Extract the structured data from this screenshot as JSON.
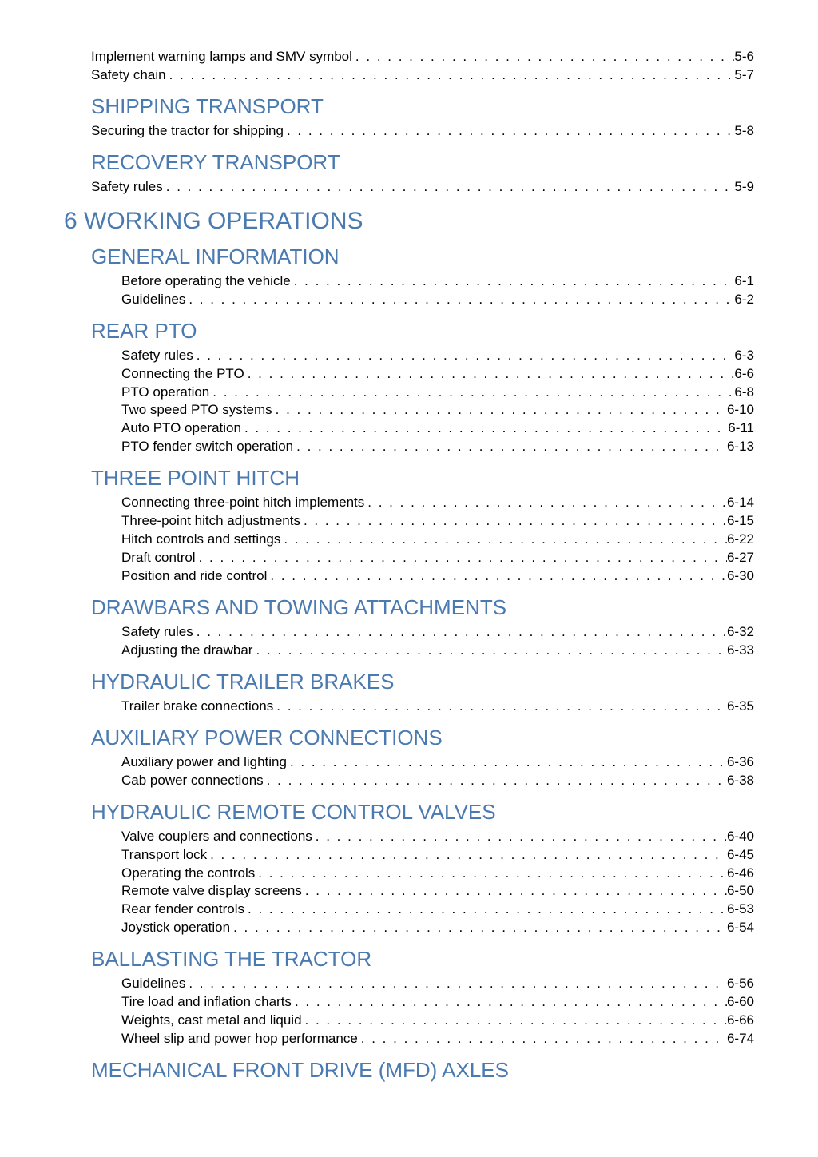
{
  "dot_fill": ". . . . . . . . . . . . . . . . . . . . . . . . . . . . . . . . . . . . . . . . . . . . . . . . . . . . . . . . . . . . . . . . . . . . . . . . . . . . . . . . . . . . . . . . . . . . . . . . . . . . . . . . . . . . . . . . . . . . . . . .",
  "colors": {
    "heading": "#4a7ab0",
    "body_text": "#000000",
    "background": "#ffffff",
    "rule": "#000000"
  },
  "typography": {
    "chapter_fontsize": 30,
    "section_fontsize": 26,
    "entry_fontsize": 17,
    "font_family": "Arial"
  },
  "toc": [
    {
      "type": "entry-l1",
      "label": "Implement warning lamps and SMV symbol",
      "page": "5-6"
    },
    {
      "type": "entry-l1",
      "label": "Safety chain",
      "page": "5-7"
    },
    {
      "type": "section",
      "label": "SHIPPING TRANSPORT"
    },
    {
      "type": "entry-l1",
      "label": "Securing the tractor for shipping",
      "page": "5-8"
    },
    {
      "type": "section",
      "label": "RECOVERY TRANSPORT"
    },
    {
      "type": "entry-l1",
      "label": "Safety rules",
      "page": "5-9"
    },
    {
      "type": "chapter",
      "label": "6 WORKING OPERATIONS"
    },
    {
      "type": "section",
      "label": "GENERAL INFORMATION"
    },
    {
      "type": "entry-l2",
      "label": "Before operating the vehicle",
      "page": "6-1"
    },
    {
      "type": "entry-l2",
      "label": "Guidelines",
      "page": "6-2"
    },
    {
      "type": "section",
      "label": "REAR PTO"
    },
    {
      "type": "entry-l2",
      "label": "Safety rules",
      "page": "6-3"
    },
    {
      "type": "entry-l2",
      "label": "Connecting the PTO",
      "page": "6-6"
    },
    {
      "type": "entry-l2",
      "label": "PTO operation",
      "page": "6-8"
    },
    {
      "type": "entry-l2",
      "label": "Two speed PTO systems",
      "page": "6-10"
    },
    {
      "type": "entry-l2",
      "label": "Auto PTO operation",
      "page": "6-11"
    },
    {
      "type": "entry-l2",
      "label": "PTO fender switch operation",
      "page": "6-13"
    },
    {
      "type": "section",
      "label": "THREE POINT HITCH"
    },
    {
      "type": "entry-l2",
      "label": "Connecting three-point hitch implements",
      "page": "6-14"
    },
    {
      "type": "entry-l2",
      "label": "Three-point hitch adjustments",
      "page": "6-15"
    },
    {
      "type": "entry-l2",
      "label": "Hitch controls and settings",
      "page": "6-22"
    },
    {
      "type": "entry-l2",
      "label": "Draft control",
      "page": "6-27"
    },
    {
      "type": "entry-l2",
      "label": "Position and ride control",
      "page": "6-30"
    },
    {
      "type": "section",
      "label": "DRAWBARS AND TOWING ATTACHMENTS"
    },
    {
      "type": "entry-l2",
      "label": "Safety rules",
      "page": "6-32"
    },
    {
      "type": "entry-l2",
      "label": "Adjusting the drawbar",
      "page": "6-33"
    },
    {
      "type": "section",
      "label": "HYDRAULIC TRAILER BRAKES"
    },
    {
      "type": "entry-l2",
      "label": "Trailer brake connections",
      "page": "6-35"
    },
    {
      "type": "section",
      "label": "AUXILIARY POWER CONNECTIONS"
    },
    {
      "type": "entry-l2",
      "label": "Auxiliary power and lighting",
      "page": "6-36"
    },
    {
      "type": "entry-l2",
      "label": "Cab power connections",
      "page": "6-38"
    },
    {
      "type": "section",
      "label": "HYDRAULIC REMOTE CONTROL VALVES"
    },
    {
      "type": "entry-l2",
      "label": "Valve couplers and connections",
      "page": "6-40"
    },
    {
      "type": "entry-l2",
      "label": "Transport lock",
      "page": "6-45"
    },
    {
      "type": "entry-l2",
      "label": "Operating the controls",
      "page": "6-46"
    },
    {
      "type": "entry-l2",
      "label": "Remote valve display screens",
      "page": "6-50"
    },
    {
      "type": "entry-l2",
      "label": "Rear fender controls",
      "page": "6-53"
    },
    {
      "type": "entry-l2",
      "label": "Joystick operation",
      "page": "6-54"
    },
    {
      "type": "section",
      "label": "BALLASTING THE TRACTOR"
    },
    {
      "type": "entry-l2",
      "label": "Guidelines",
      "page": "6-56"
    },
    {
      "type": "entry-l2",
      "label": "Tire load and inflation charts",
      "page": "6-60"
    },
    {
      "type": "entry-l2",
      "label": "Weights, cast metal and liquid",
      "page": "6-66"
    },
    {
      "type": "entry-l2",
      "label": "Wheel slip and power hop performance",
      "page": "6-74"
    },
    {
      "type": "section",
      "label": "MECHANICAL FRONT DRIVE (MFD) AXLES"
    }
  ]
}
